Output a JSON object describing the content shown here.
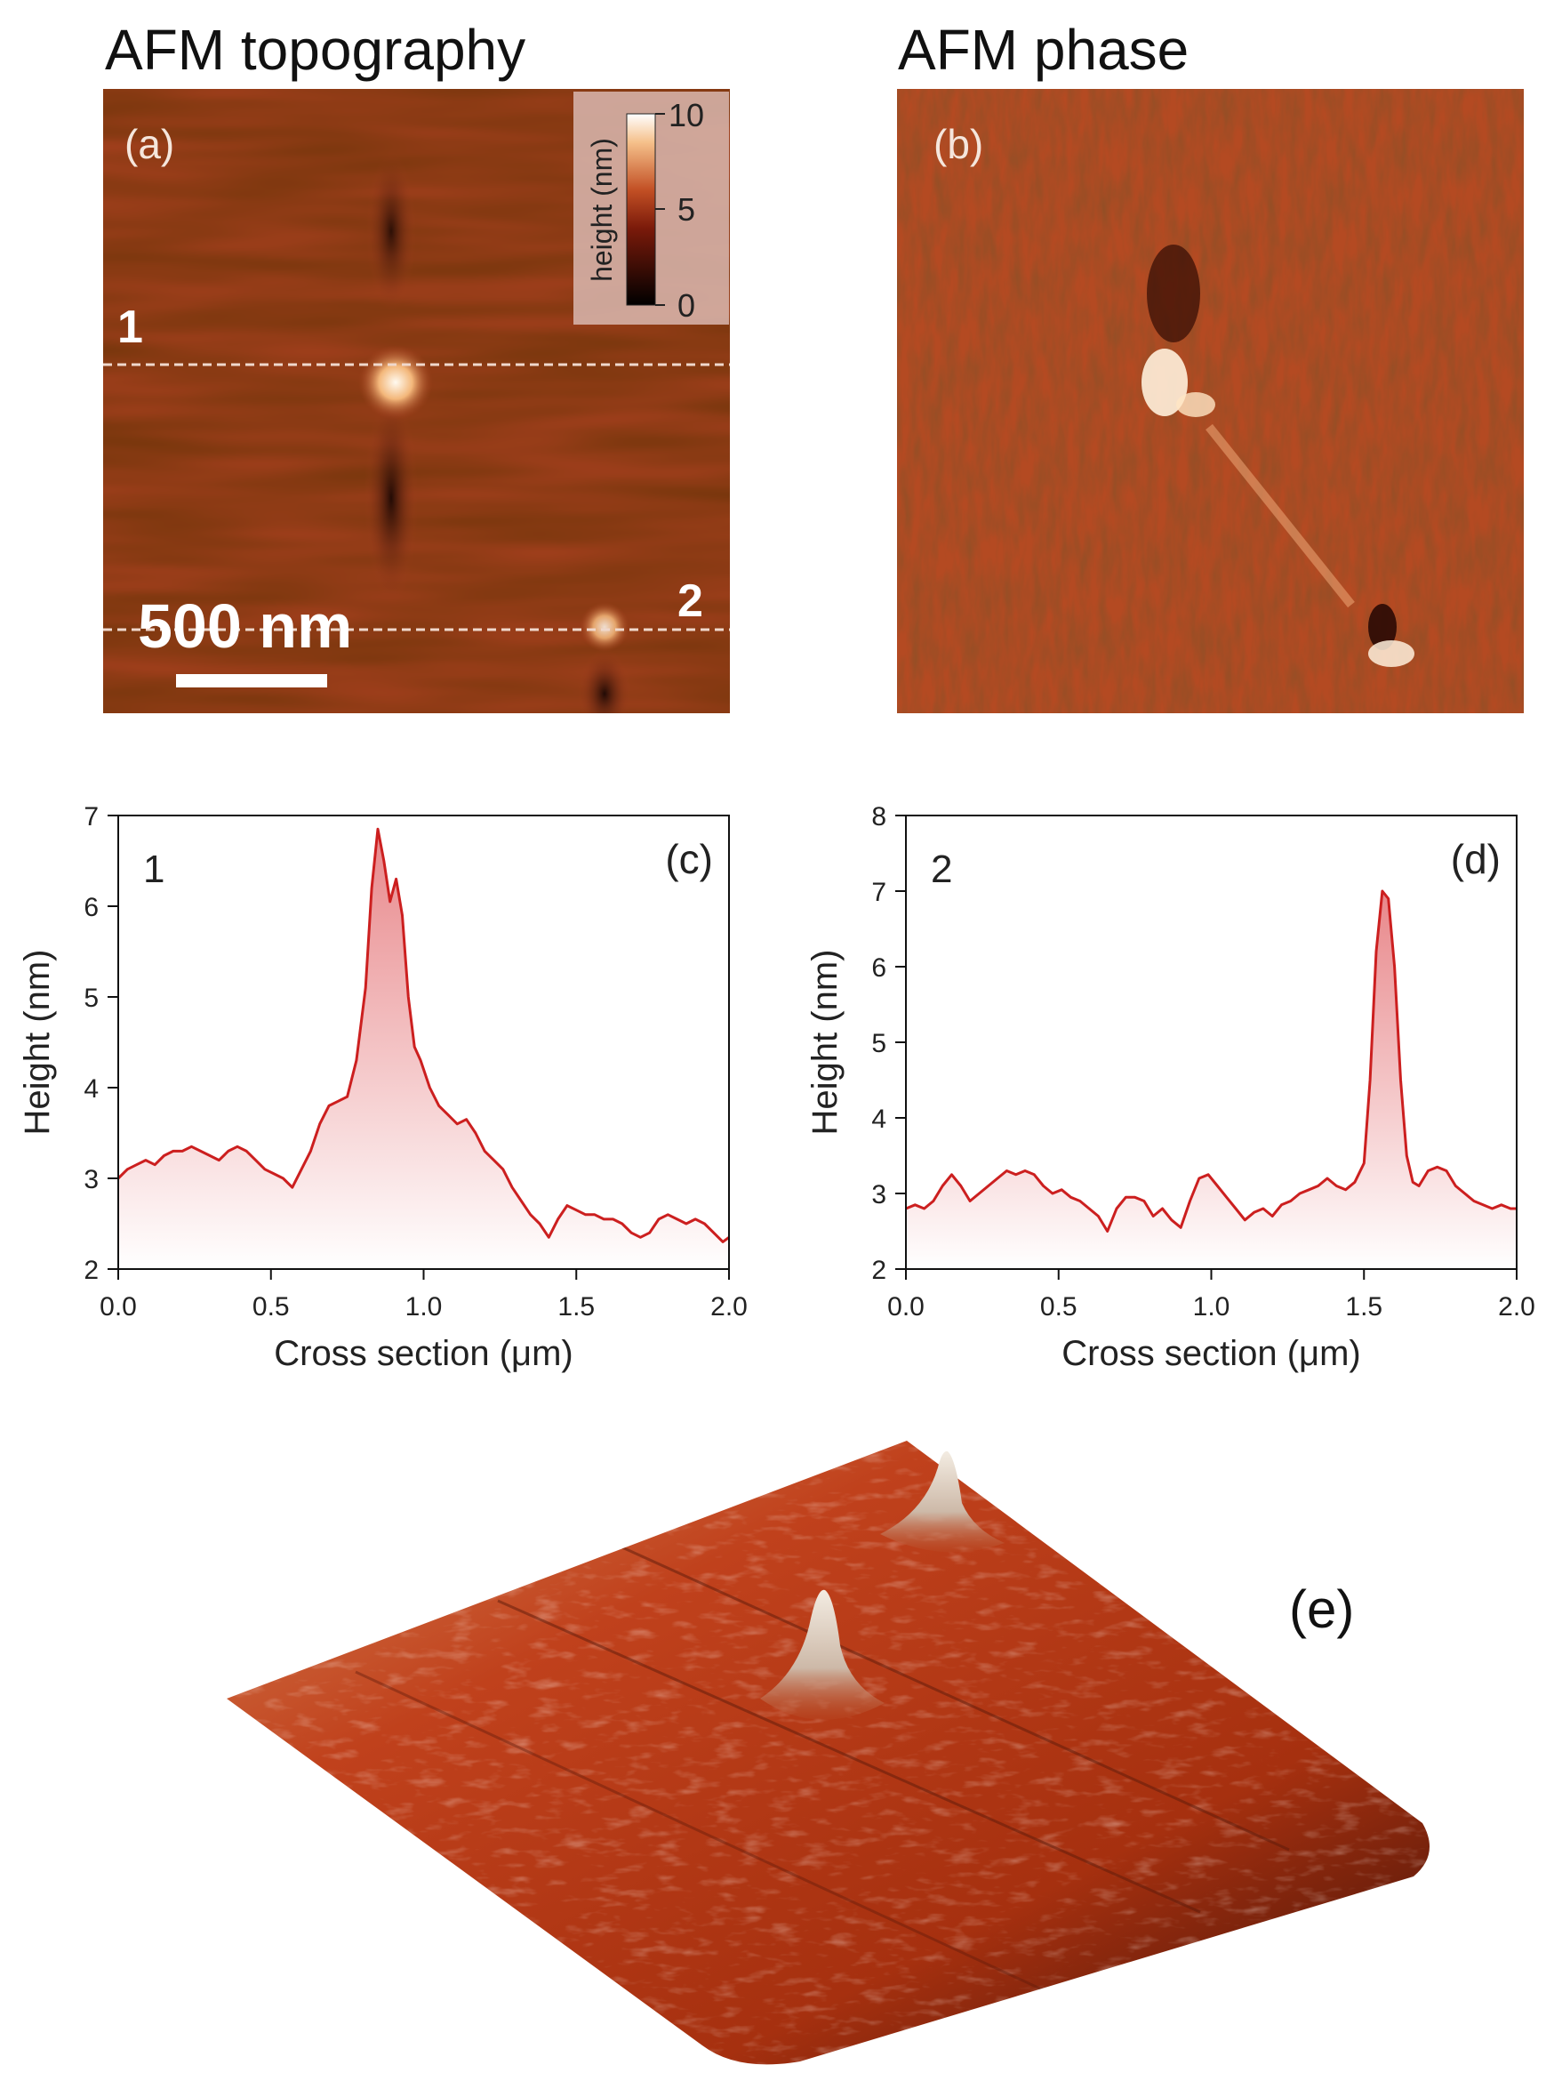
{
  "panels": {
    "a": {
      "heading": "AFM topography",
      "label": "(a)",
      "colorbar": {
        "title": "height (nm)",
        "ticks": [
          "10",
          "5",
          "0"
        ]
      },
      "scalebar": "500 nm",
      "line_labels": [
        "1",
        "2"
      ]
    },
    "b": {
      "heading": "AFM phase",
      "label": "(b)"
    },
    "e": {
      "label": "(e)"
    }
  },
  "colors": {
    "trace": "#cc1f1f",
    "fill_top": "#e8878a",
    "fill_bottom": "#ffffff",
    "afm_base": "#a8401f",
    "afm_bright": "#fff2dc"
  },
  "chart_data": [
    {
      "type": "area",
      "panel_label": "(c)",
      "series_label": "1",
      "xlabel": "Cross section (μm)",
      "ylabel": "Height (nm)",
      "xlim": [
        0,
        2
      ],
      "ylim": [
        2,
        7
      ],
      "xticks": [
        "0.0",
        "0.5",
        "1.0",
        "1.5",
        "2.0"
      ],
      "yticks": [
        "2",
        "3",
        "4",
        "5",
        "6",
        "7"
      ],
      "x": [
        0,
        0.03,
        0.06,
        0.09,
        0.12,
        0.15,
        0.18,
        0.21,
        0.24,
        0.27,
        0.3,
        0.33,
        0.36,
        0.39,
        0.42,
        0.45,
        0.48,
        0.51,
        0.54,
        0.57,
        0.6,
        0.63,
        0.66,
        0.69,
        0.72,
        0.75,
        0.78,
        0.81,
        0.83,
        0.85,
        0.87,
        0.89,
        0.91,
        0.93,
        0.95,
        0.97,
        0.99,
        1.02,
        1.05,
        1.08,
        1.11,
        1.14,
        1.17,
        1.2,
        1.23,
        1.26,
        1.29,
        1.32,
        1.35,
        1.38,
        1.41,
        1.44,
        1.47,
        1.5,
        1.53,
        1.56,
        1.59,
        1.62,
        1.65,
        1.68,
        1.71,
        1.74,
        1.77,
        1.8,
        1.83,
        1.86,
        1.89,
        1.92,
        1.95,
        1.98,
        2.0
      ],
      "y": [
        3.0,
        3.1,
        3.15,
        3.2,
        3.15,
        3.25,
        3.3,
        3.3,
        3.35,
        3.3,
        3.25,
        3.2,
        3.3,
        3.35,
        3.3,
        3.2,
        3.1,
        3.05,
        3.0,
        2.9,
        3.1,
        3.3,
        3.6,
        3.8,
        3.85,
        3.9,
        4.3,
        5.1,
        6.2,
        6.85,
        6.5,
        6.05,
        6.3,
        5.9,
        5.0,
        4.45,
        4.3,
        4.0,
        3.8,
        3.7,
        3.6,
        3.65,
        3.5,
        3.3,
        3.2,
        3.1,
        2.9,
        2.75,
        2.6,
        2.5,
        2.35,
        2.55,
        2.7,
        2.65,
        2.6,
        2.6,
        2.55,
        2.55,
        2.5,
        2.4,
        2.35,
        2.4,
        2.55,
        2.6,
        2.55,
        2.5,
        2.55,
        2.5,
        2.4,
        2.3,
        2.35
      ]
    },
    {
      "type": "area",
      "panel_label": "(d)",
      "series_label": "2",
      "xlabel": "Cross section (μm)",
      "ylabel": "Height (nm)",
      "xlim": [
        0,
        2
      ],
      "ylim": [
        2,
        8
      ],
      "xticks": [
        "0.0",
        "0.5",
        "1.0",
        "1.5",
        "2.0"
      ],
      "yticks": [
        "2",
        "3",
        "4",
        "5",
        "6",
        "7",
        "8"
      ],
      "x": [
        0,
        0.03,
        0.06,
        0.09,
        0.12,
        0.15,
        0.18,
        0.21,
        0.24,
        0.27,
        0.3,
        0.33,
        0.36,
        0.39,
        0.42,
        0.45,
        0.48,
        0.51,
        0.54,
        0.57,
        0.6,
        0.63,
        0.66,
        0.69,
        0.72,
        0.75,
        0.78,
        0.81,
        0.84,
        0.87,
        0.9,
        0.93,
        0.96,
        0.99,
        1.02,
        1.05,
        1.08,
        1.11,
        1.14,
        1.17,
        1.2,
        1.23,
        1.26,
        1.29,
        1.32,
        1.35,
        1.38,
        1.41,
        1.44,
        1.47,
        1.5,
        1.52,
        1.54,
        1.56,
        1.58,
        1.6,
        1.62,
        1.64,
        1.66,
        1.68,
        1.71,
        1.74,
        1.77,
        1.8,
        1.83,
        1.86,
        1.89,
        1.92,
        1.95,
        1.98,
        2.0
      ],
      "y": [
        2.8,
        2.85,
        2.8,
        2.9,
        3.1,
        3.25,
        3.1,
        2.9,
        3.0,
        3.1,
        3.2,
        3.3,
        3.25,
        3.3,
        3.25,
        3.1,
        3.0,
        3.05,
        2.95,
        2.9,
        2.8,
        2.7,
        2.5,
        2.8,
        2.95,
        2.95,
        2.9,
        2.7,
        2.8,
        2.65,
        2.55,
        2.9,
        3.2,
        3.25,
        3.1,
        2.95,
        2.8,
        2.65,
        2.75,
        2.8,
        2.7,
        2.85,
        2.9,
        3.0,
        3.05,
        3.1,
        3.2,
        3.1,
        3.05,
        3.15,
        3.4,
        4.5,
        6.2,
        7.0,
        6.9,
        6.0,
        4.5,
        3.5,
        3.15,
        3.1,
        3.3,
        3.35,
        3.3,
        3.1,
        3.0,
        2.9,
        2.85,
        2.8,
        2.85,
        2.8,
        2.8
      ]
    }
  ]
}
